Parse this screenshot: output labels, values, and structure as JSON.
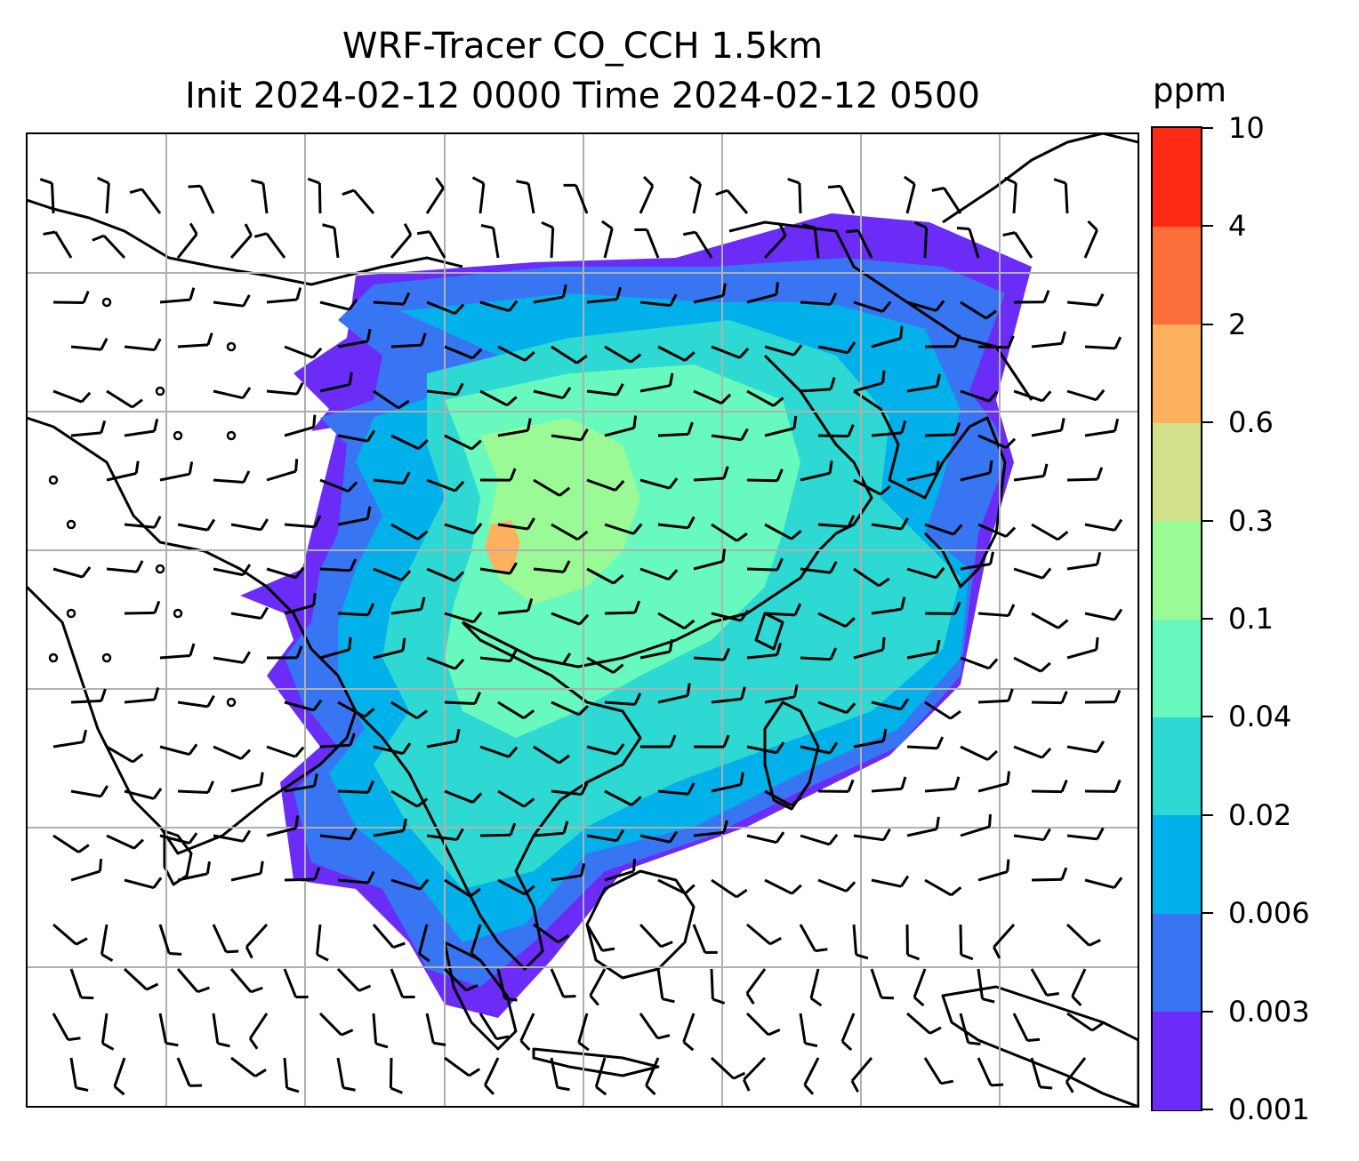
{
  "title": {
    "line1": "WRF-Tracer CO_CCH 1.5km",
    "line2": "Init 2024-02-12 0000 Time 2024-02-12 0500"
  },
  "colorbar": {
    "unit": "ppm",
    "ticks": [
      "0.001",
      "0.003",
      "0.006",
      "0.02",
      "0.04",
      "0.1",
      "0.3",
      "0.6",
      "2",
      "4",
      "10"
    ],
    "colors": [
      "#6a2cf6",
      "#3875f2",
      "#03b1ea",
      "#2ed9d3",
      "#67f9bd",
      "#9afa96",
      "#d1e089",
      "#fdb05e",
      "#fd703b",
      "#ff2a14"
    ]
  },
  "map": {
    "gridlines": true,
    "field_colors": {
      "lowest": "#6a2cf6",
      "low": "#3875f2",
      "mid": "#03b1ea",
      "midhigh": "#2ed9d3",
      "high": "#67f9bd",
      "higher": "#9afa96",
      "peak": "#fdb05e"
    },
    "barb_color": "#000000",
    "coastline_color": "#000000"
  }
}
